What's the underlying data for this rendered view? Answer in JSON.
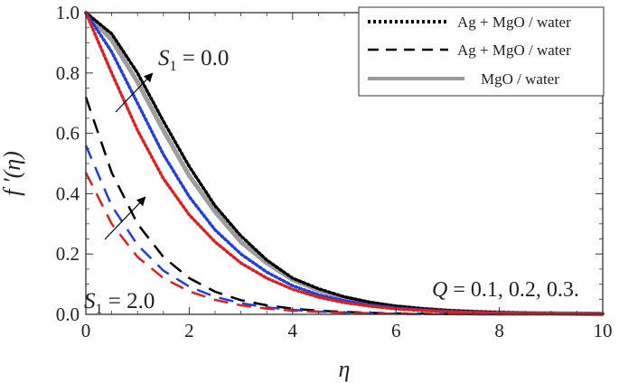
{
  "chart_data": {
    "type": "line",
    "xlabel": "η",
    "ylabel": "f ′(η)",
    "xlim": [
      0,
      10
    ],
    "ylim": [
      0,
      1.0
    ],
    "x_ticks": [
      "0",
      "2",
      "4",
      "6",
      "8",
      "10"
    ],
    "y_ticks": [
      "0.0",
      "0.2",
      "0.4",
      "0.6",
      "0.8",
      "1.0"
    ],
    "grid": false,
    "legend_position": "top-right",
    "legend": [
      {
        "label": "Ag + MgO / water",
        "style": "dotted",
        "color": "#000000"
      },
      {
        "label": "Ag + MgO / water",
        "style": "dashed",
        "color": "#000000"
      },
      {
        "label": "MgO / water",
        "style": "solid",
        "color": "#9a9a9a"
      }
    ],
    "annotations": {
      "s1_top": {
        "text": "S",
        "sub": "1",
        "eq": " = 0.0"
      },
      "s1_bottom": {
        "text": "S",
        "sub": "1",
        "eq": " = 2.0"
      },
      "q": {
        "text": "Q",
        "eq": " = 0.1, 0.2, 0.3."
      }
    },
    "colors": {
      "q1": "#000000",
      "q2": "#1f3fe0",
      "q3": "#e02020",
      "mgo": "#8c8c8c"
    },
    "x": [
      0,
      0.5,
      1,
      1.5,
      2,
      2.5,
      3,
      3.5,
      4,
      4.5,
      5,
      5.5,
      6,
      6.5,
      7,
      7.5,
      8,
      8.5,
      9,
      9.5,
      10
    ],
    "series": [
      {
        "group": "s1_0",
        "color_key": "q1",
        "style": "dotted",
        "values": [
          1.0,
          0.93,
          0.8,
          0.64,
          0.49,
          0.36,
          0.26,
          0.18,
          0.12,
          0.085,
          0.058,
          0.04,
          0.027,
          0.019,
          0.013,
          0.009,
          0.006,
          0.004,
          0.003,
          0.002,
          0.002
        ]
      },
      {
        "group": "s1_0",
        "color_key": "q2",
        "style": "dotted",
        "values": [
          1.0,
          0.87,
          0.7,
          0.53,
          0.39,
          0.28,
          0.2,
          0.14,
          0.095,
          0.065,
          0.045,
          0.031,
          0.021,
          0.015,
          0.01,
          0.007,
          0.005,
          0.003,
          0.002,
          0.002,
          0.001
        ]
      },
      {
        "group": "s1_0",
        "color_key": "q3",
        "style": "dotted",
        "values": [
          1.0,
          0.8,
          0.61,
          0.45,
          0.33,
          0.24,
          0.17,
          0.12,
          0.083,
          0.057,
          0.039,
          0.027,
          0.018,
          0.013,
          0.009,
          0.006,
          0.004,
          0.003,
          0.002,
          0.001,
          0.001
        ]
      },
      {
        "group": "s1_0",
        "color_key": "mgo",
        "style": "solid",
        "values": [
          1.0,
          0.91,
          0.77,
          0.61,
          0.46,
          0.34,
          0.24,
          0.17,
          0.115,
          0.08,
          0.055,
          0.038,
          0.026,
          0.018,
          0.012,
          0.008,
          0.006,
          0.004,
          0.003,
          0.002,
          0.001
        ]
      },
      {
        "group": "s1_2",
        "color_key": "q1",
        "style": "dashed",
        "values": [
          0.72,
          0.47,
          0.3,
          0.19,
          0.12,
          0.075,
          0.047,
          0.03,
          0.019,
          0.012,
          0.008,
          0.005,
          0.003,
          0.002,
          0.001,
          0.001,
          0.0,
          0.0,
          0.0,
          0.0,
          0.0
        ]
      },
      {
        "group": "s1_2",
        "color_key": "q2",
        "style": "dashed",
        "values": [
          0.56,
          0.36,
          0.23,
          0.145,
          0.092,
          0.058,
          0.037,
          0.023,
          0.015,
          0.009,
          0.006,
          0.004,
          0.002,
          0.001,
          0.001,
          0.0,
          0.0,
          0.0,
          0.0,
          0.0,
          0.0
        ]
      },
      {
        "group": "s1_2",
        "color_key": "q3",
        "style": "dashed",
        "values": [
          0.47,
          0.3,
          0.19,
          0.12,
          0.076,
          0.048,
          0.03,
          0.019,
          0.012,
          0.008,
          0.005,
          0.003,
          0.002,
          0.001,
          0.001,
          0.0,
          0.0,
          0.0,
          0.0,
          0.0,
          0.0
        ]
      }
    ]
  }
}
